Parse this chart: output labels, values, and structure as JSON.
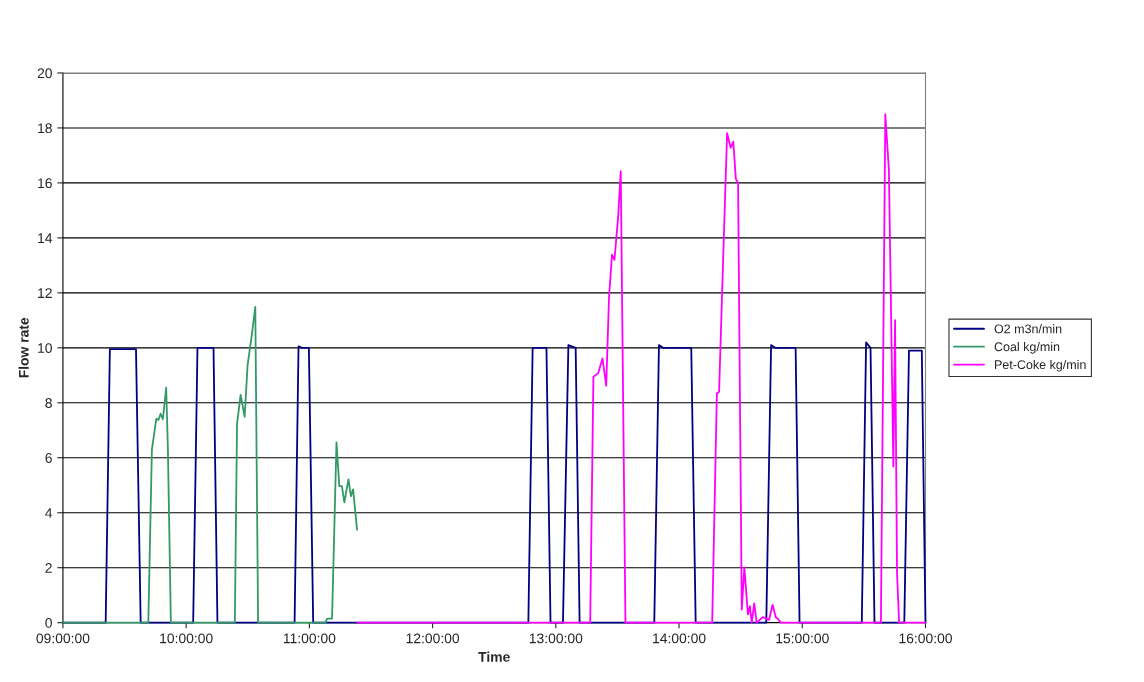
{
  "chart_data": {
    "type": "line",
    "xlabel": "Time",
    "ylabel": "Flow rate",
    "xlim": [
      9,
      16
    ],
    "xticks": [
      {
        "value": 9,
        "label": "09:00:00"
      },
      {
        "value": 10,
        "label": "10:00:00"
      },
      {
        "value": 11,
        "label": "11:00:00"
      },
      {
        "value": 12,
        "label": "12:00:00"
      },
      {
        "value": 13,
        "label": "13:00:00"
      },
      {
        "value": 14,
        "label": "14:00:00"
      },
      {
        "value": 15,
        "label": "15:00:00"
      },
      {
        "value": 16,
        "label": "16:00:00"
      }
    ],
    "ylim": [
      0,
      20
    ],
    "yticks": [
      0,
      2,
      4,
      6,
      8,
      10,
      12,
      14,
      16,
      18,
      20
    ],
    "grid": "y",
    "legend": "right",
    "marker": "none",
    "line_style": "solid",
    "series": [
      {
        "name": "O2 m3n/min",
        "color": "#000080",
        "x": [
          9.0,
          9.347,
          9.381,
          9.593,
          9.631,
          10.057,
          10.092,
          10.222,
          10.254,
          10.88,
          10.912,
          10.94,
          10.996,
          11.031,
          12.777,
          12.812,
          12.924,
          12.957,
          13.058,
          13.102,
          13.161,
          13.193,
          13.799,
          13.837,
          13.87,
          14.099,
          14.135,
          14.708,
          14.747,
          14.78,
          14.946,
          14.978,
          15.483,
          15.518,
          15.554,
          15.586,
          15.828,
          15.866,
          15.97,
          16.0
        ],
        "values": [
          0,
          0,
          9.95,
          9.95,
          0,
          0,
          10.0,
          10.0,
          0,
          0,
          10.05,
          10.0,
          10.0,
          0,
          0,
          10.0,
          10.0,
          0,
          0,
          10.1,
          10.0,
          0,
          0,
          10.1,
          10.0,
          10.0,
          0,
          0,
          10.1,
          10.0,
          10.0,
          0,
          0,
          10.2,
          10.0,
          0,
          0,
          9.9,
          9.9,
          0
        ]
      },
      {
        "name": "Coal kg/min",
        "color": "#339966",
        "x": [
          9.0,
          9.693,
          9.722,
          9.758,
          9.775,
          9.793,
          9.811,
          9.838,
          9.852,
          9.876,
          10.395,
          10.413,
          10.442,
          10.475,
          10.498,
          10.531,
          10.561,
          10.584,
          11.13,
          11.145,
          11.184,
          11.22,
          11.243,
          11.264,
          11.284,
          11.317,
          11.337,
          11.355,
          11.387
        ],
        "values": [
          0,
          0,
          6.3,
          7.42,
          7.38,
          7.6,
          7.4,
          8.55,
          6.3,
          0,
          0,
          7.23,
          8.29,
          7.49,
          9.34,
          10.4,
          11.49,
          0,
          0,
          0.15,
          0.15,
          6.56,
          4.97,
          4.97,
          4.38,
          5.21,
          4.6,
          4.85,
          3.38
        ]
      },
      {
        "name": "Pet-Coke kg/min",
        "color": "#ff00ff",
        "x": [
          11.39,
          13.279,
          13.305,
          13.344,
          13.379,
          13.409,
          13.432,
          13.456,
          13.476,
          13.506,
          13.527,
          13.565,
          14.269,
          14.307,
          14.325,
          14.36,
          14.39,
          14.419,
          14.44,
          14.461,
          14.479,
          14.509,
          14.53,
          14.559,
          14.575,
          14.59,
          14.61,
          14.63,
          14.68,
          14.73,
          14.759,
          14.785,
          14.8,
          14.827,
          15.638,
          15.674,
          15.703,
          15.721,
          15.739,
          15.753,
          15.769,
          15.786,
          16.0
        ],
        "values": [
          0,
          0,
          8.95,
          9.08,
          9.61,
          8.62,
          11.86,
          13.39,
          13.2,
          14.78,
          16.43,
          0,
          0,
          8.34,
          8.4,
          13.54,
          17.81,
          17.28,
          17.5,
          16.14,
          16.0,
          0.48,
          2.01,
          0.3,
          0.6,
          0,
          0.7,
          0,
          0.2,
          0.1,
          0.65,
          0.2,
          0.15,
          0,
          0,
          18.5,
          16.47,
          11.14,
          5.68,
          11.01,
          1.81,
          0,
          0
        ]
      }
    ]
  }
}
